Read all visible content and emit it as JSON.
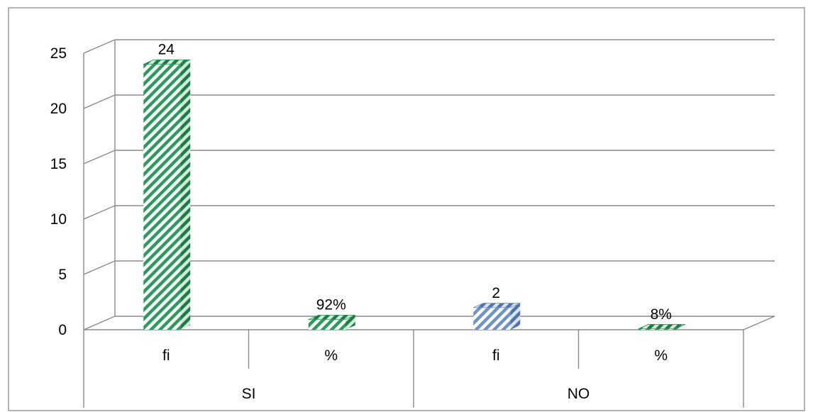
{
  "chart_data": {
    "type": "bar",
    "title": "",
    "xlabel": "",
    "ylabel": "",
    "ylim": [
      0,
      25
    ],
    "yticks": [
      0,
      5,
      10,
      15,
      20,
      25
    ],
    "grid": true,
    "groups": [
      "SI",
      "NO"
    ],
    "categories": [
      {
        "group": "SI",
        "label": "fi",
        "value": 24,
        "value_label": "24",
        "color": "#2E9B5E"
      },
      {
        "group": "SI",
        "label": "%",
        "value": 0.92,
        "value_label": "92%",
        "color": "#2E9B5E"
      },
      {
        "group": "NO",
        "label": "fi",
        "value": 2,
        "value_label": "2",
        "color": "#6F93C8"
      },
      {
        "group": "NO",
        "label": "%",
        "value": 0.08,
        "value_label": "8%",
        "color": "#2E9B5E"
      }
    ]
  }
}
